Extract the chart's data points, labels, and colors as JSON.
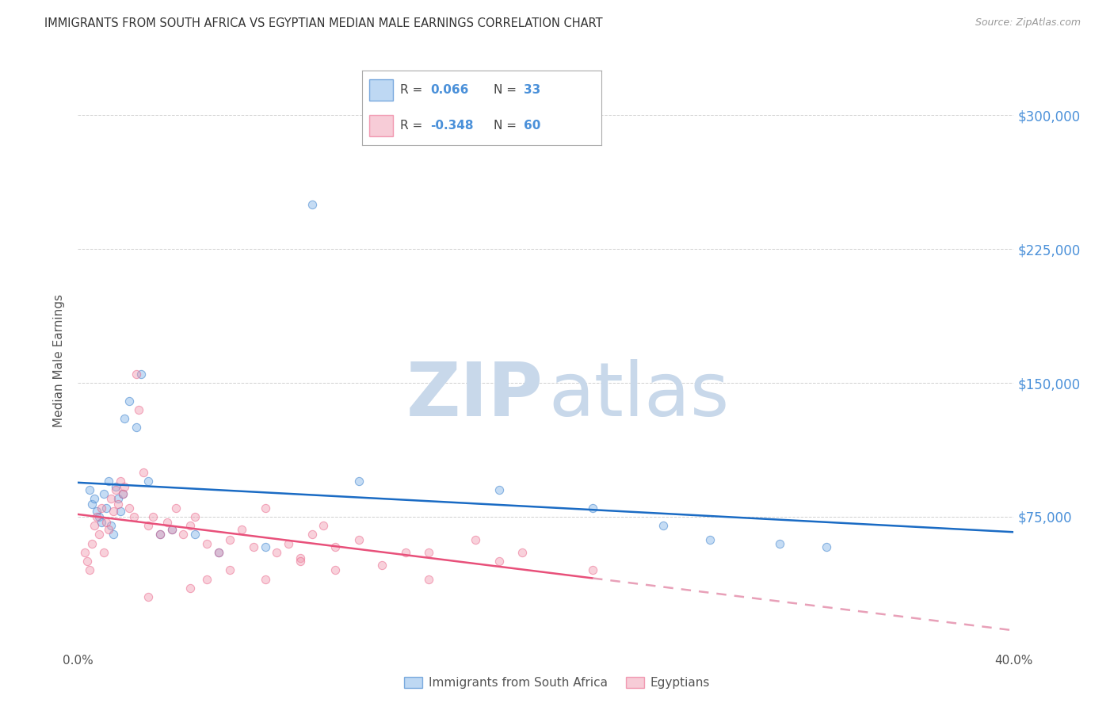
{
  "title": "IMMIGRANTS FROM SOUTH AFRICA VS EGYPTIAN MEDIAN MALE EARNINGS CORRELATION CHART",
  "source": "Source: ZipAtlas.com",
  "ylabel": "Median Male Earnings",
  "xlim": [
    0.0,
    0.4
  ],
  "ylim": [
    0,
    325000
  ],
  "yticks": [
    0,
    75000,
    150000,
    225000,
    300000
  ],
  "xticks": [
    0.0,
    0.05,
    0.1,
    0.15,
    0.2,
    0.25,
    0.3,
    0.35,
    0.4
  ],
  "blue_scatter_x": [
    0.005,
    0.006,
    0.007,
    0.008,
    0.009,
    0.01,
    0.011,
    0.012,
    0.013,
    0.014,
    0.015,
    0.016,
    0.017,
    0.018,
    0.019,
    0.02,
    0.022,
    0.025,
    0.027,
    0.03,
    0.035,
    0.04,
    0.05,
    0.06,
    0.08,
    0.1,
    0.12,
    0.18,
    0.22,
    0.25,
    0.27,
    0.3,
    0.32
  ],
  "blue_scatter_y": [
    90000,
    82000,
    85000,
    78000,
    75000,
    72000,
    88000,
    80000,
    95000,
    70000,
    65000,
    92000,
    85000,
    78000,
    88000,
    130000,
    140000,
    125000,
    155000,
    95000,
    65000,
    68000,
    65000,
    55000,
    58000,
    250000,
    95000,
    90000,
    80000,
    70000,
    62000,
    60000,
    58000
  ],
  "pink_scatter_x": [
    0.003,
    0.004,
    0.005,
    0.006,
    0.007,
    0.008,
    0.009,
    0.01,
    0.011,
    0.012,
    0.013,
    0.014,
    0.015,
    0.016,
    0.017,
    0.018,
    0.019,
    0.02,
    0.022,
    0.024,
    0.025,
    0.026,
    0.028,
    0.03,
    0.032,
    0.035,
    0.038,
    0.04,
    0.042,
    0.045,
    0.048,
    0.05,
    0.055,
    0.06,
    0.065,
    0.07,
    0.075,
    0.08,
    0.085,
    0.09,
    0.095,
    0.1,
    0.105,
    0.11,
    0.12,
    0.13,
    0.14,
    0.15,
    0.17,
    0.19,
    0.03,
    0.048,
    0.055,
    0.065,
    0.08,
    0.095,
    0.11,
    0.15,
    0.18,
    0.22
  ],
  "pink_scatter_y": [
    55000,
    50000,
    45000,
    60000,
    70000,
    75000,
    65000,
    80000,
    55000,
    72000,
    68000,
    85000,
    78000,
    90000,
    82000,
    95000,
    88000,
    92000,
    80000,
    75000,
    155000,
    135000,
    100000,
    70000,
    75000,
    65000,
    72000,
    68000,
    80000,
    65000,
    70000,
    75000,
    60000,
    55000,
    62000,
    68000,
    58000,
    80000,
    55000,
    60000,
    52000,
    65000,
    70000,
    58000,
    62000,
    48000,
    55000,
    40000,
    62000,
    55000,
    30000,
    35000,
    40000,
    45000,
    40000,
    50000,
    45000,
    55000,
    50000,
    45000
  ],
  "blue_line_color": "#1a6bc4",
  "pink_line_color": "#e8507a",
  "pink_dash_color": "#e8a0b8",
  "blue_scatter_color": "#7fb3e8",
  "pink_scatter_color": "#f09ab0",
  "watermark_zip_color": "#c8d8ea",
  "watermark_atlas_color": "#c8d8ea",
  "background_color": "#ffffff",
  "grid_color": "#d0d0d0",
  "title_color": "#333333",
  "axis_label_color": "#555555",
  "ytick_label_color": "#4a90d9",
  "legend_value_color": "#4a90d9",
  "figure_width": 14.06,
  "figure_height": 8.92
}
